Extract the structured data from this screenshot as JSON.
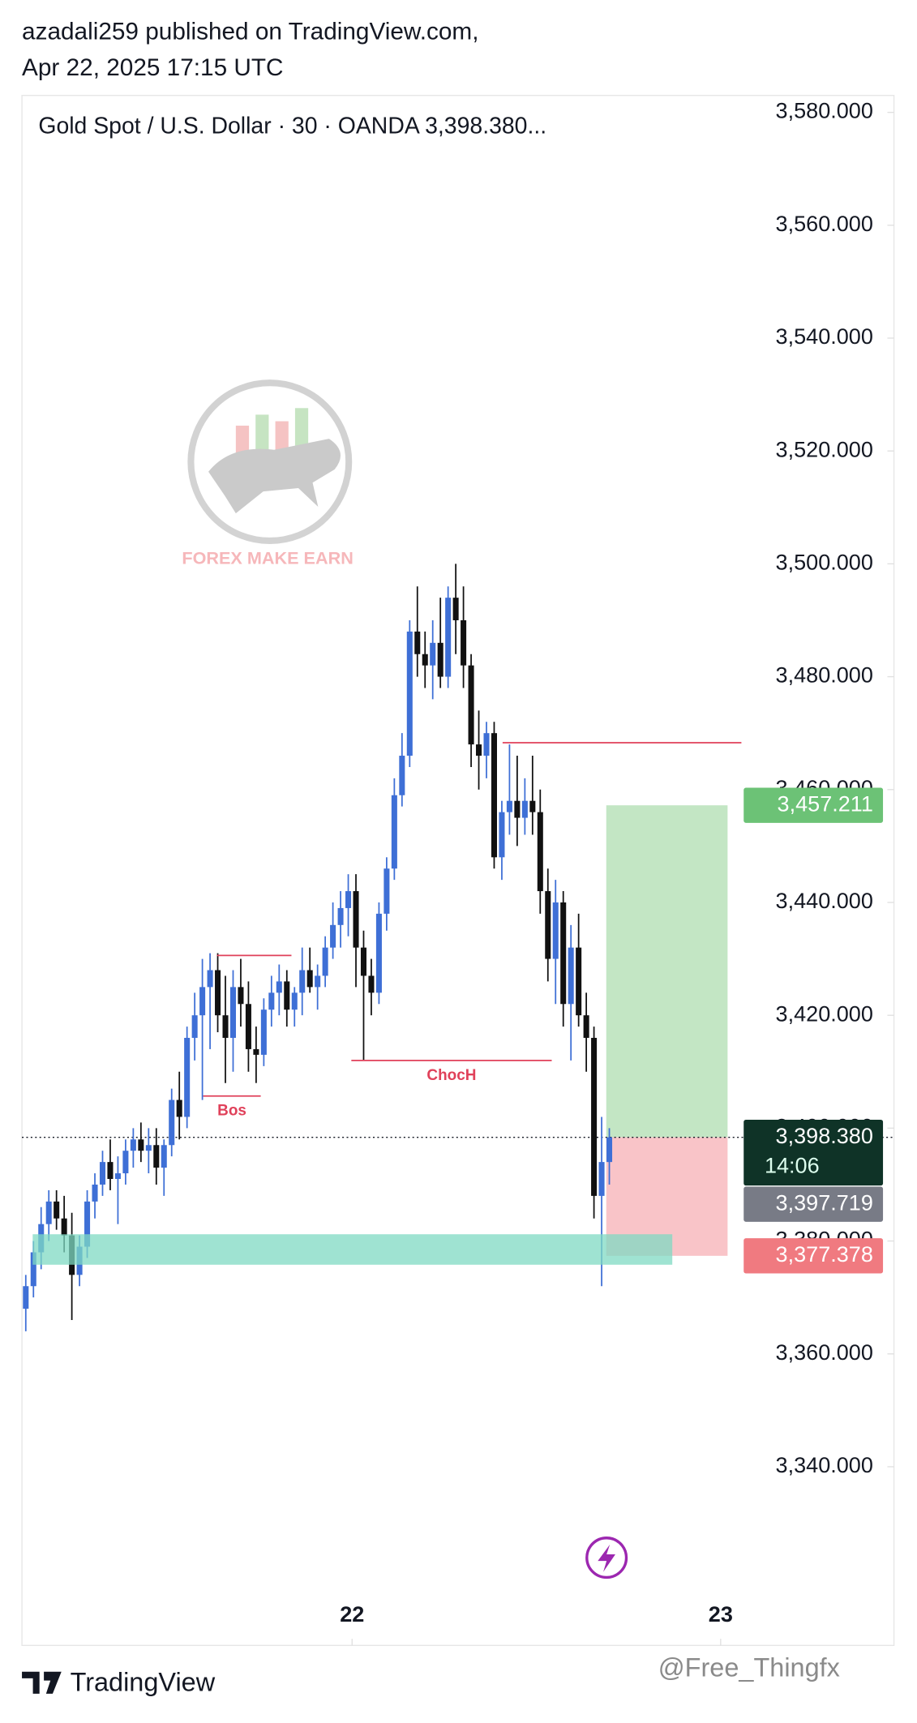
{
  "header": {
    "author": "azadali259 published on TradingView.com,",
    "date": "Apr 22, 2025 17:15 UTC"
  },
  "chart_data": {
    "type": "candlestick",
    "title": "Gold Spot / U.S. Dollar · 30 · OANDA  3,398.380...",
    "open": [
      3368,
      3372,
      3378,
      3383,
      3387,
      3384,
      3381,
      3374,
      3379,
      3387,
      3390,
      3394,
      3391,
      3392,
      3396,
      3398,
      3396,
      3397,
      3393,
      3397,
      3405,
      3402,
      3416,
      3420,
      3425,
      3428,
      3420,
      3416,
      3425,
      3422,
      3414,
      3413,
      3421,
      3424,
      3426,
      3421,
      3424,
      3428,
      3425,
      3427,
      3432,
      3436,
      3439,
      3442,
      3432,
      3427,
      3424,
      3438,
      3446,
      3459,
      3466,
      3488,
      3484,
      3482,
      3486,
      3480,
      3494,
      3490,
      3482,
      3468,
      3466,
      3470,
      3448,
      3456,
      3458,
      3455,
      3458,
      3456,
      3442,
      3430,
      3440,
      3422,
      3432,
      3420,
      3416,
      3388,
      3394
    ],
    "high": [
      3374,
      3380,
      3386,
      3389,
      3389,
      3388,
      3385,
      3381,
      3389,
      3392,
      3396,
      3398,
      3395,
      3398,
      3400,
      3401,
      3400,
      3400,
      3398,
      3407,
      3410,
      3418,
      3424,
      3430,
      3431,
      3431,
      3427,
      3428,
      3430,
      3426,
      3418,
      3423,
      3427,
      3429,
      3428,
      3425,
      3432,
      3432,
      3429,
      3434,
      3440,
      3442,
      3445,
      3445,
      3435,
      3430,
      3440,
      3448,
      3462,
      3470,
      3490,
      3496,
      3488,
      3490,
      3494,
      3496,
      3500,
      3496,
      3484,
      3474,
      3472,
      3472,
      3458,
      3468,
      3466,
      3462,
      3466,
      3460,
      3446,
      3444,
      3442,
      3436,
      3438,
      3424,
      3418,
      3402,
      3400
    ],
    "low": [
      3364,
      3370,
      3375,
      3380,
      3382,
      3378,
      3366,
      3372,
      3377,
      3384,
      3388,
      3389,
      3383,
      3390,
      3393,
      3394,
      3392,
      3390,
      3388,
      3395,
      3398,
      3400,
      3412,
      3405,
      3414,
      3417,
      3408,
      3410,
      3418,
      3410,
      3408,
      3411,
      3418,
      3420,
      3418,
      3418,
      3420,
      3424,
      3421,
      3425,
      3430,
      3432,
      3434,
      3425,
      3412,
      3420,
      3422,
      3435,
      3444,
      3457,
      3464,
      3480,
      3478,
      3476,
      3478,
      3478,
      3484,
      3478,
      3464,
      3460,
      3462,
      3446,
      3444,
      3452,
      3450,
      3452,
      3452,
      3438,
      3426,
      3422,
      3418,
      3412,
      3418,
      3410,
      3384,
      3372,
      3390
    ],
    "close": [
      3372,
      3378,
      3383,
      3387,
      3384,
      3381,
      3374,
      3379,
      3387,
      3390,
      3394,
      3391,
      3392,
      3396,
      3398,
      3396,
      3397,
      3393,
      3397,
      3405,
      3402,
      3416,
      3420,
      3425,
      3428,
      3420,
      3416,
      3425,
      3422,
      3414,
      3413,
      3421,
      3424,
      3426,
      3421,
      3424,
      3428,
      3425,
      3427,
      3432,
      3436,
      3439,
      3442,
      3432,
      3427,
      3424,
      3438,
      3446,
      3459,
      3466,
      3488,
      3484,
      3482,
      3486,
      3480,
      3494,
      3490,
      3482,
      3468,
      3466,
      3470,
      3448,
      3456,
      3458,
      3455,
      3458,
      3456,
      3442,
      3430,
      3440,
      3422,
      3432,
      3420,
      3416,
      3388,
      3394,
      3398.38
    ],
    "up_color": "#3e6fd6",
    "down_color": "#111111",
    "xlim": [
      0,
      113.57
    ],
    "xticks": [
      {
        "value": 43,
        "label": "22"
      },
      {
        "value": 91,
        "label": "23"
      }
    ],
    "ylim": [
      3320,
      3583
    ],
    "yticks": [
      {
        "value": 3340,
        "label": "3,340.000"
      },
      {
        "value": 3360,
        "label": "3,360.000"
      },
      {
        "value": 3380,
        "label": "3,380.000"
      },
      {
        "value": 3400,
        "label": "3,400.000"
      },
      {
        "value": 3420,
        "label": "3,420.000"
      },
      {
        "value": 3440,
        "label": "3,440.000"
      },
      {
        "value": 3460,
        "label": "3,460.000"
      },
      {
        "value": 3480,
        "label": "3,480.000"
      },
      {
        "value": 3500,
        "label": "3,500.000"
      },
      {
        "value": 3520,
        "label": "3,520.000"
      },
      {
        "value": 3540,
        "label": "3,540.000"
      },
      {
        "value": 3560,
        "label": "3,560.000"
      },
      {
        "value": 3580,
        "label": "3,580.000"
      }
    ],
    "lines": [
      {
        "price": 3430.6,
        "x": [
          25.4,
          35.1
        ],
        "color": "#e0415a"
      },
      {
        "price": 3405.7,
        "x": [
          23.6,
          31.1
        ],
        "color": "#e0415a",
        "label": "Bos"
      },
      {
        "price": 3412,
        "x": [
          42.9,
          69
        ],
        "color": "#e0415a",
        "label": "ChocH"
      },
      {
        "price": 3468.3,
        "x": [
          62.6,
          93.7
        ],
        "color": "#e0415a"
      }
    ],
    "zone": {
      "low": 3375.8,
      "high": 3381.2,
      "x": [
        1.4,
        84.7
      ],
      "color": "#7fd9c3"
    },
    "position": {
      "entry": 3398.38,
      "target": 3457.211,
      "stop": 3377.378,
      "x": [
        76.1,
        91.9
      ],
      "profit_color": "#c3e6c4",
      "loss_color": "#f9c4c8"
    },
    "price_labels": [
      {
        "value": 3457.211,
        "value_label": "3,457.211",
        "color": "#6cc276"
      },
      {
        "value": 3398.38,
        "value_label": "3,398.380",
        "extra": "14:06",
        "color": "#0f3327"
      },
      {
        "value": 3397.719,
        "value_label": "3,397.719",
        "color": "#787b86"
      },
      {
        "value": 3377.378,
        "value_label": "3,377.378",
        "color": "#f07a80"
      }
    ]
  },
  "watermark": "FOREX MAKE EARN",
  "footer": {
    "brand": "TradingView",
    "credit": "@Free_Thingfx"
  }
}
